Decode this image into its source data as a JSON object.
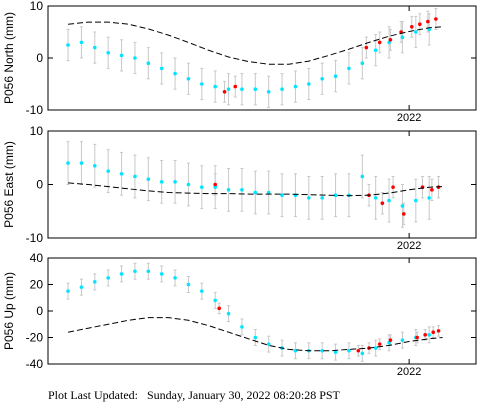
{
  "footer": {
    "label": "Plot Last Updated:",
    "value": "Sunday, January 30, 2022 08:20:28 PST"
  },
  "colors": {
    "raw_points": "#00e5ff",
    "rapid_points": "#ff0000",
    "error_bars": "#c8c8c8",
    "model_line": "#000000"
  },
  "chart_data": [
    {
      "type": "scatter",
      "ylabel": "P056 North (mm)",
      "ylim": [
        -10,
        10
      ],
      "yticks": [
        -10,
        0,
        10
      ],
      "xlim": [
        2019.3,
        2022.5
      ],
      "xticks": [
        2022
      ],
      "xtick_labels": [
        "2022"
      ],
      "grid": false,
      "series": [
        {
          "role": "daily",
          "x": [
            2019.45,
            2019.55,
            2019.65,
            2019.75,
            2019.85,
            2019.95,
            2020.05,
            2020.15,
            2020.25,
            2020.35,
            2020.45,
            2020.55,
            2020.65,
            2020.75,
            2020.85,
            2020.95,
            2021.05,
            2021.15,
            2021.25,
            2021.35,
            2021.45,
            2021.55,
            2021.65,
            2021.75,
            2021.85,
            2021.95,
            2022.05,
            2022.15
          ],
          "y": [
            2.5,
            3.0,
            2.0,
            1.0,
            0.5,
            0.0,
            -1.0,
            -2.0,
            -3.0,
            -4.0,
            -5.0,
            -5.5,
            -6.0,
            -6.0,
            -6.0,
            -6.5,
            -6.0,
            -5.5,
            -5.0,
            -4.0,
            -3.5,
            -2.0,
            -1.0,
            1.5,
            3.0,
            4.0,
            5.0,
            5.5
          ],
          "error": 3
        },
        {
          "role": "rapid",
          "x": [
            2020.62,
            2020.7,
            2021.68,
            2021.78,
            2021.86,
            2021.94,
            2022.02,
            2022.08,
            2022.14,
            2022.2
          ],
          "y": [
            -6.5,
            -5.5,
            2.0,
            3.0,
            3.5,
            5.0,
            6.0,
            6.5,
            7.0,
            7.5
          ],
          "error": 2
        }
      ],
      "model": {
        "x": [
          2019.45,
          2019.6,
          2019.75,
          2019.9,
          2020.05,
          2020.2,
          2020.35,
          2020.5,
          2020.65,
          2020.8,
          2020.95,
          2021.1,
          2021.25,
          2021.4,
          2021.55,
          2021.7,
          2021.85,
          2022.0,
          2022.15,
          2022.25
        ],
        "y": [
          6.5,
          6.9,
          6.9,
          6.5,
          5.6,
          4.4,
          3.0,
          1.5,
          0.2,
          -0.7,
          -1.2,
          -1.2,
          -0.6,
          0.5,
          1.7,
          3.0,
          4.2,
          5.1,
          5.8,
          6.0
        ]
      }
    },
    {
      "type": "scatter",
      "ylabel": "P056 East (mm)",
      "ylim": [
        -10,
        10
      ],
      "yticks": [
        -10,
        0,
        10
      ],
      "xlim": [
        2019.3,
        2022.5
      ],
      "xticks": [
        2022
      ],
      "xtick_labels": [
        "2022"
      ],
      "grid": false,
      "series": [
        {
          "role": "daily",
          "x": [
            2019.45,
            2019.55,
            2019.65,
            2019.75,
            2019.85,
            2019.95,
            2020.05,
            2020.15,
            2020.25,
            2020.35,
            2020.45,
            2020.55,
            2020.65,
            2020.75,
            2020.85,
            2020.95,
            2021.05,
            2021.15,
            2021.25,
            2021.35,
            2021.45,
            2021.55,
            2021.65,
            2021.75,
            2021.85,
            2021.95,
            2022.05,
            2022.15
          ],
          "y": [
            4.0,
            4.0,
            3.5,
            2.5,
            2.0,
            1.5,
            1.0,
            0.5,
            0.5,
            0.0,
            -0.5,
            -0.5,
            -1.0,
            -1.0,
            -1.5,
            -1.5,
            -2.0,
            -2.0,
            -2.5,
            -2.5,
            -2.0,
            -2.0,
            1.5,
            -2.5,
            -3.0,
            -4.0,
            -3.0,
            -2.5
          ],
          "error": 4
        },
        {
          "role": "rapid",
          "x": [
            2020.55,
            2021.7,
            2021.8,
            2021.88,
            2021.96,
            2022.1,
            2022.17,
            2022.22
          ],
          "y": [
            0.0,
            -2.0,
            -3.5,
            -0.5,
            -5.5,
            -0.5,
            -1.0,
            -0.5
          ],
          "error": 2
        }
      ],
      "model": {
        "x": [
          2019.45,
          2019.6,
          2019.75,
          2019.9,
          2020.05,
          2020.2,
          2020.35,
          2020.5,
          2020.65,
          2020.8,
          2020.95,
          2021.1,
          2021.25,
          2021.4,
          2021.55,
          2021.7,
          2021.85,
          2022.0,
          2022.15,
          2022.25
        ],
        "y": [
          0.3,
          0.0,
          -0.4,
          -0.8,
          -1.2,
          -1.5,
          -1.6,
          -1.7,
          -1.7,
          -1.8,
          -1.8,
          -1.8,
          -1.9,
          -2.0,
          -2.1,
          -2.0,
          -1.6,
          -1.0,
          -0.5,
          -0.4
        ]
      }
    },
    {
      "type": "scatter",
      "ylabel": "P056 Up (mm)",
      "ylim": [
        -40,
        40
      ],
      "yticks": [
        -40,
        -20,
        0,
        20,
        40
      ],
      "xlim": [
        2019.3,
        2022.5
      ],
      "xticks": [
        2022
      ],
      "xtick_labels": [
        "2022"
      ],
      "grid": false,
      "series": [
        {
          "role": "daily",
          "x": [
            2019.45,
            2019.55,
            2019.65,
            2019.75,
            2019.85,
            2019.95,
            2020.05,
            2020.15,
            2020.25,
            2020.35,
            2020.45,
            2020.55,
            2020.65,
            2020.75,
            2020.85,
            2020.95,
            2021.05,
            2021.15,
            2021.25,
            2021.35,
            2021.45,
            2021.55,
            2021.65,
            2021.75,
            2021.85,
            2021.95,
            2022.05,
            2022.15
          ],
          "y": [
            15,
            18,
            22,
            25,
            28,
            30,
            30,
            28,
            25,
            20,
            15,
            8,
            -2,
            -12,
            -20,
            -25,
            -28,
            -30,
            -30,
            -30,
            -31,
            -30,
            -32,
            -28,
            -24,
            -22,
            -20,
            -18
          ],
          "error": 6
        },
        {
          "role": "rapid",
          "x": [
            2020.58,
            2021.62,
            2021.7,
            2021.78,
            2021.86,
            2022.06,
            2022.12,
            2022.18,
            2022.22
          ],
          "y": [
            2,
            -30,
            -28,
            -25,
            -22,
            -20,
            -18,
            -16,
            -15
          ],
          "error": 4
        }
      ],
      "model": {
        "x": [
          2019.45,
          2019.6,
          2019.75,
          2019.9,
          2020.05,
          2020.2,
          2020.35,
          2020.5,
          2020.65,
          2020.8,
          2020.95,
          2021.1,
          2021.25,
          2021.4,
          2021.55,
          2021.7,
          2021.85,
          2022.0,
          2022.15,
          2022.25
        ],
        "y": [
          -16,
          -13,
          -10,
          -7,
          -5,
          -5,
          -7,
          -11,
          -16,
          -21,
          -26,
          -29,
          -30,
          -30,
          -29,
          -28,
          -26,
          -23,
          -21,
          -20
        ]
      }
    }
  ]
}
